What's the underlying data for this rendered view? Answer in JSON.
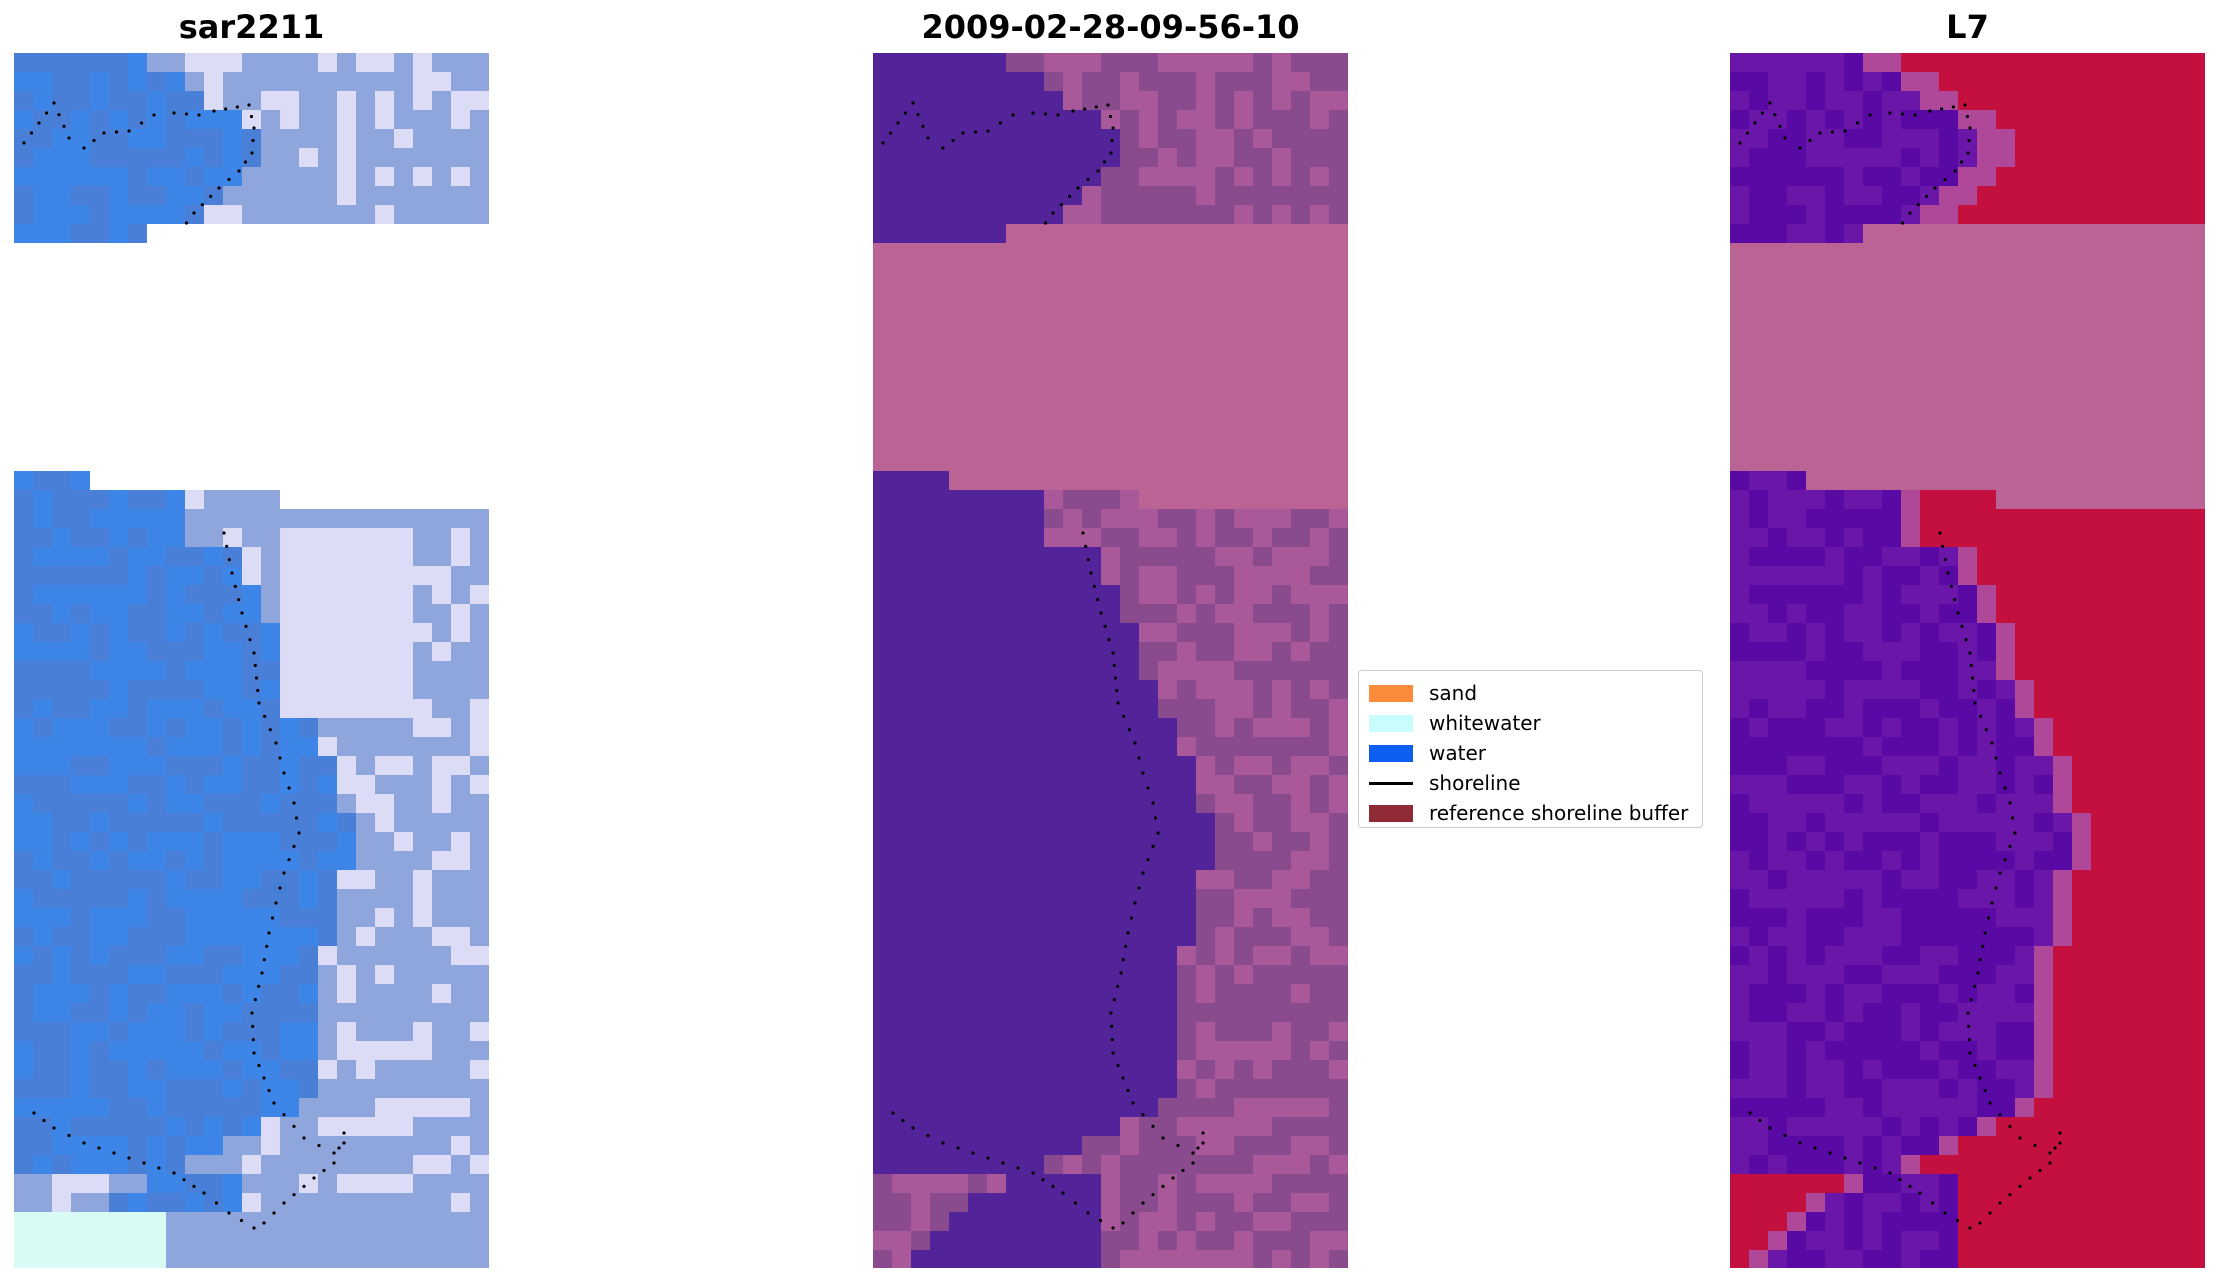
{
  "panels": [
    {
      "title": "sar2211",
      "palette": "rgb",
      "colors": {
        "water": "#4a7fd8",
        "water2": "#3d86e8",
        "land": "#8fa6dc",
        "bright": "#dcdcf6",
        "foam": "#d8fbf6",
        "mask": "#ffffff"
      }
    },
    {
      "title": "2009-02-28-09-56-10",
      "palette": "classified",
      "colors": {
        "water": "#522399",
        "land": "#8a4a8e",
        "land2": "#a9589a",
        "mask": "#bc6395"
      }
    },
    {
      "title": "L7",
      "palette": "index",
      "colors": {
        "water": "#6a16a8",
        "water2": "#5a0aa4",
        "land": "#c4103e",
        "edge": "#b0489a",
        "mask": "#bc6395"
      }
    }
  ],
  "legend": {
    "items": [
      {
        "label": "sand",
        "color": "#f98b3a",
        "kind": "patch"
      },
      {
        "label": "whitewater",
        "color": "#c9fdfd",
        "kind": "patch"
      },
      {
        "label": "water",
        "color": "#0c5ff0",
        "kind": "patch"
      },
      {
        "label": "shoreline",
        "color": "#000000",
        "kind": "line"
      },
      {
        "label": "reference shoreline buffer",
        "color": "#8f2a36",
        "kind": "patch"
      }
    ]
  }
}
